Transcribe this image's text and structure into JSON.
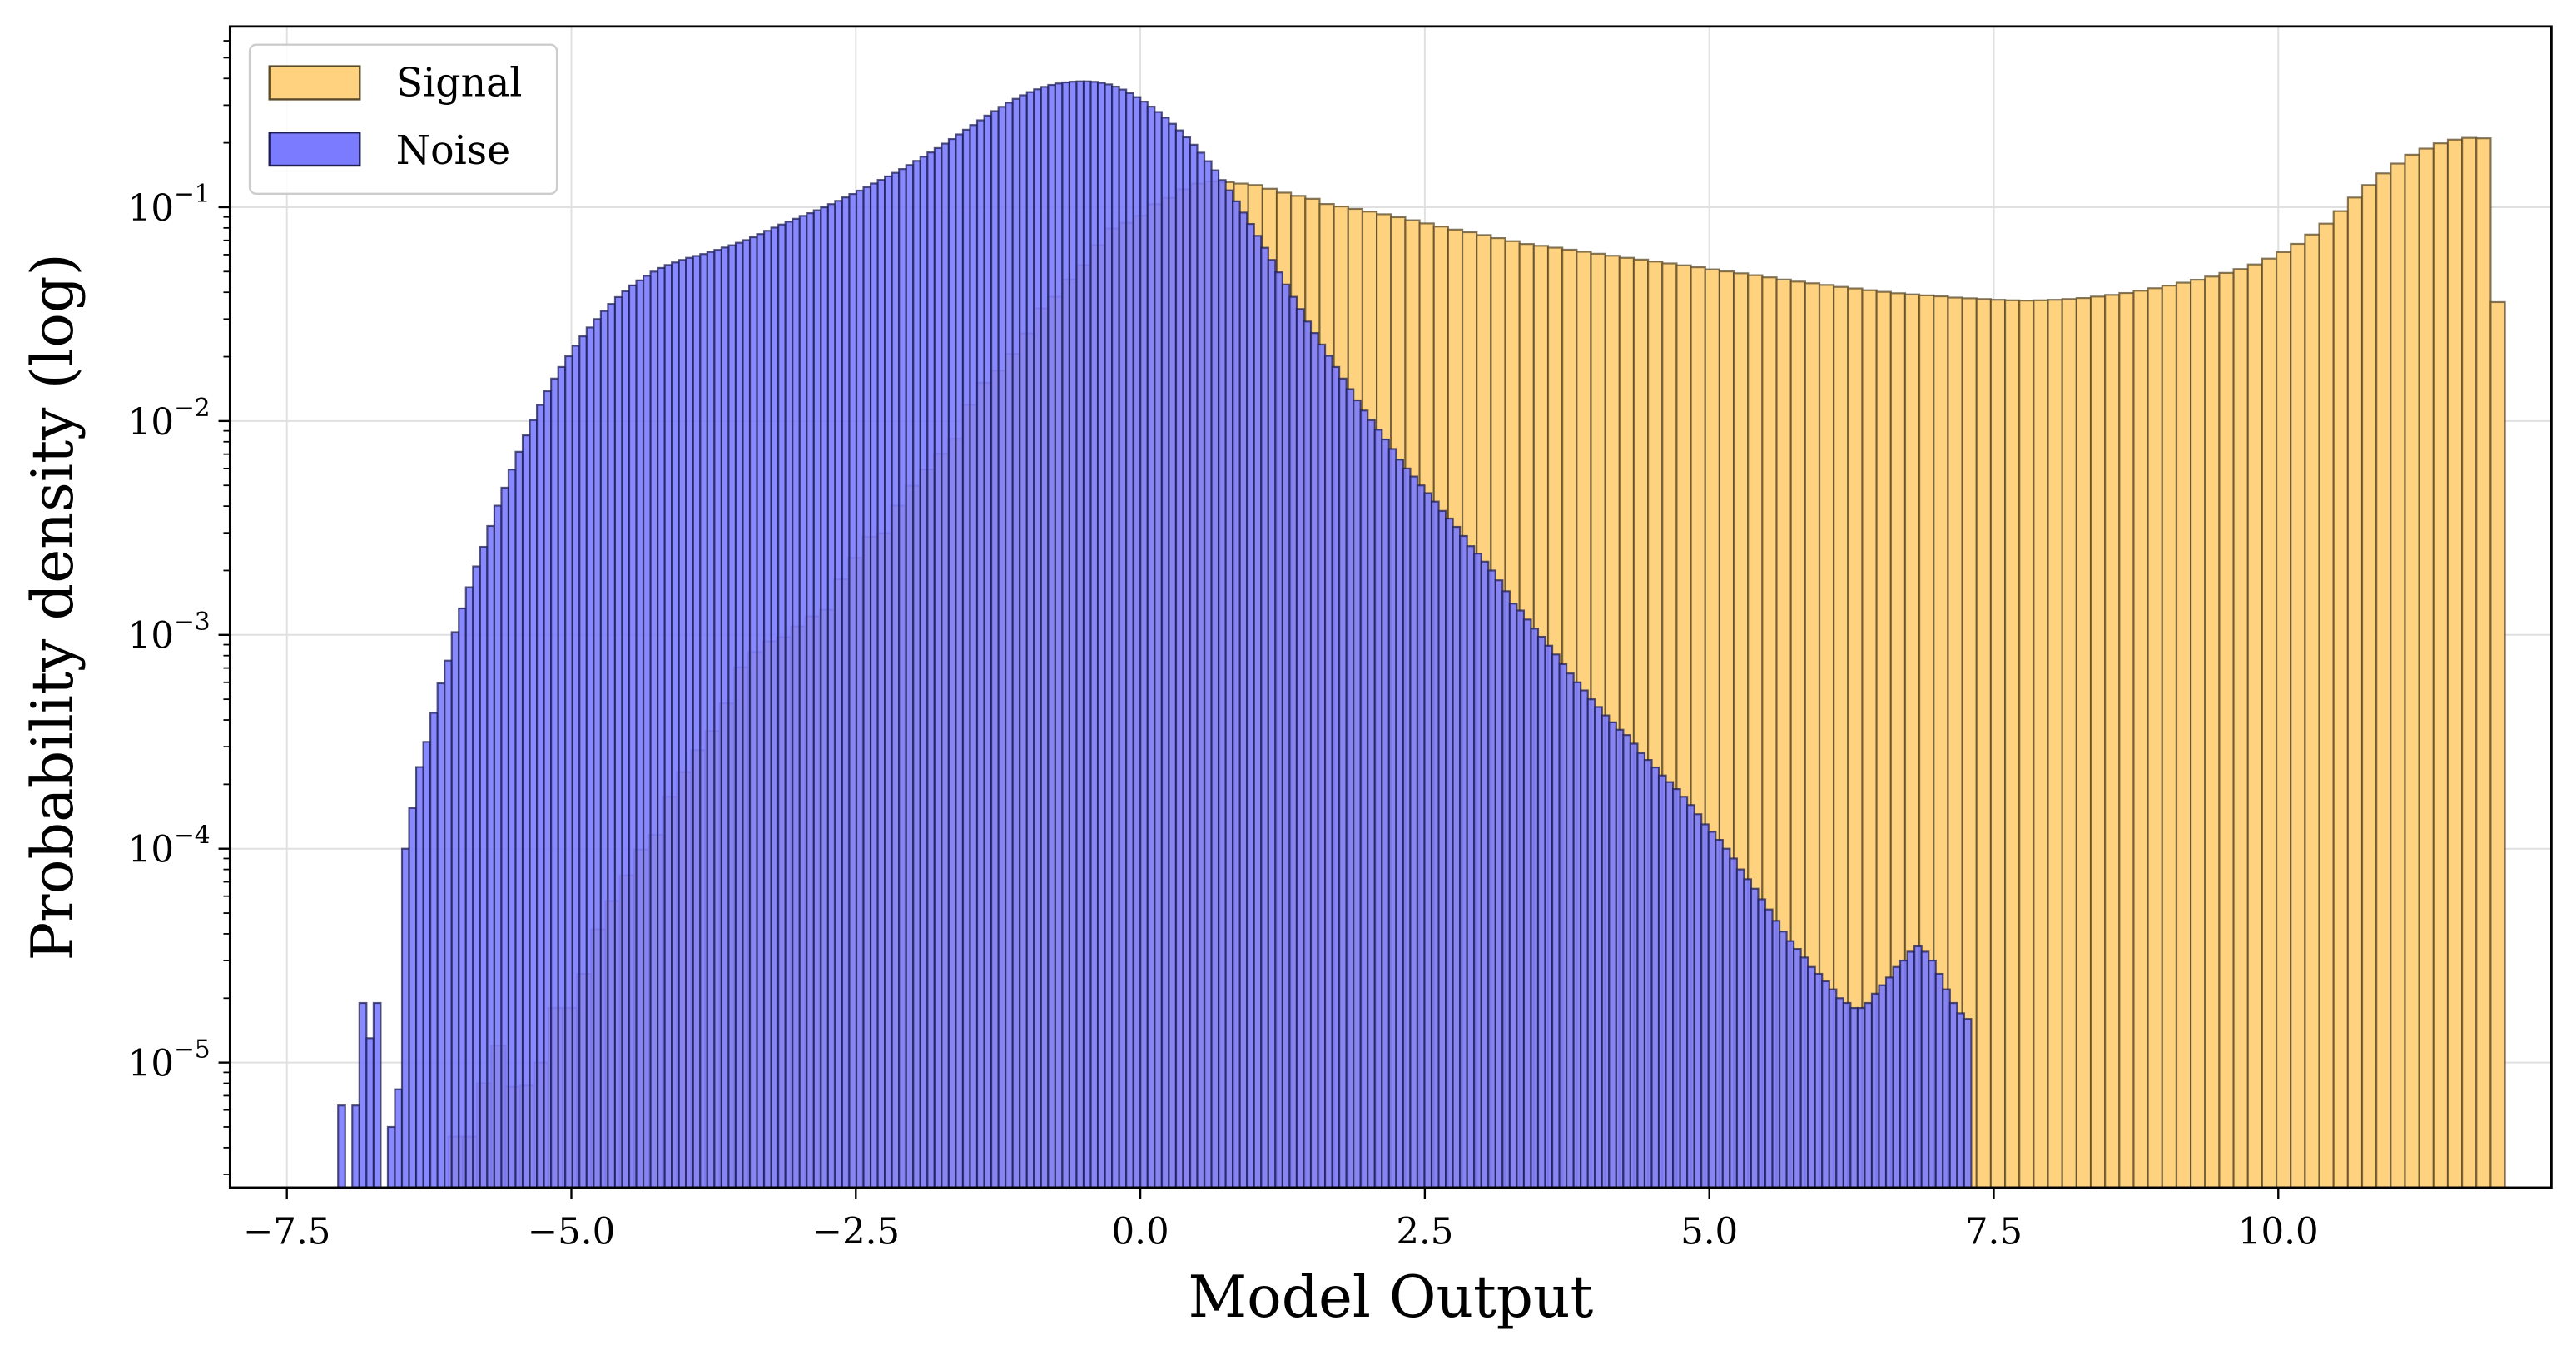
{
  "chart_data": {
    "type": "bar",
    "xlabel": "Model Output",
    "ylabel": "Probability density (log)",
    "xlim": [
      -8.0,
      12.4
    ],
    "ylim": [
      2.6e-06,
      0.7
    ],
    "yscale": "log",
    "grid": true,
    "legend_position": "top-left",
    "x_ticks": [
      "−7.5",
      "−5.0",
      "−2.5",
      "0.0",
      "2.5",
      "5.0",
      "7.5",
      "10.0"
    ],
    "x_tick_values": [
      -7.5,
      -5.0,
      -2.5,
      0.0,
      2.5,
      5.0,
      7.5,
      10.0
    ],
    "y_ticks": [
      {
        "value": 1e-05,
        "base": "10",
        "exp": "−5"
      },
      {
        "value": 0.0001,
        "base": "10",
        "exp": "−4"
      },
      {
        "value": 0.001,
        "base": "10",
        "exp": "−3"
      },
      {
        "value": 0.01,
        "base": "10",
        "exp": "−2"
      },
      {
        "value": 0.1,
        "base": "10",
        "exp": "−1"
      }
    ],
    "series": [
      {
        "name": "Signal",
        "color": "#ffd27f",
        "edge_color": "#5a4a2a",
        "bin_start": -6.08,
        "bin_width": 0.1255,
        "values": [
          4.5e-06,
          4.5e-06,
          8e-06,
          1.2e-05,
          7.7e-06,
          7.8e-06,
          1e-05,
          1.8e-05,
          1.8e-05,
          2.6e-05,
          4.2e-05,
          5.7e-05,
          7.5e-05,
          9.9e-05,
          0.000116,
          0.000175,
          0.000228,
          0.000289,
          0.000355,
          0.000478,
          0.000705,
          0.000832,
          0.000933,
          0.000975,
          0.001095,
          0.00122,
          0.00131,
          0.00182,
          0.00229,
          0.00287,
          0.00299,
          0.00402,
          0.00498,
          0.00594,
          0.00703,
          0.00826,
          0.0119,
          0.0151,
          0.0172,
          0.0206,
          0.0257,
          0.0336,
          0.0381,
          0.0459,
          0.0536,
          0.0664,
          0.0795,
          0.0845,
          0.0912,
          0.1033,
          0.1105,
          0.1213,
          0.129,
          0.132,
          0.131,
          0.129,
          0.127,
          0.122,
          0.117,
          0.113,
          0.1095,
          0.1035,
          0.1008,
          0.0982,
          0.0954,
          0.0927,
          0.0898,
          0.0869,
          0.084,
          0.0812,
          0.0786,
          0.0764,
          0.0741,
          0.0717,
          0.0694,
          0.0673,
          0.066,
          0.0647,
          0.0633,
          0.0619,
          0.0606,
          0.0593,
          0.058,
          0.0569,
          0.0557,
          0.0546,
          0.0535,
          0.0524,
          0.0512,
          0.0501,
          0.0491,
          0.0481,
          0.047,
          0.0459,
          0.0449,
          0.0441,
          0.0433,
          0.0424,
          0.0417,
          0.0409,
          0.0402,
          0.0396,
          0.0391,
          0.0387,
          0.0383,
          0.0378,
          0.0375,
          0.0372,
          0.0369,
          0.0367,
          0.0366,
          0.0367,
          0.0369,
          0.0372,
          0.0376,
          0.0382,
          0.0389,
          0.0397,
          0.0407,
          0.0418,
          0.043,
          0.0444,
          0.0458,
          0.0474,
          0.0493,
          0.0514,
          0.054,
          0.0575,
          0.0617,
          0.0674,
          0.0745,
          0.0838,
          0.0959,
          0.111,
          0.127,
          0.144,
          0.16,
          0.176,
          0.188,
          0.199,
          0.207,
          0.211,
          0.21,
          0.036
        ]
      },
      {
        "name": "Noise",
        "color": "#7b7bff",
        "edge_color": "#1e1e50",
        "bin_start": -7.05,
        "bin_width": 0.0624,
        "values": [
          6.3e-06,
          0,
          6.3e-06,
          1.9e-05,
          1.3e-05,
          1.9e-05,
          0,
          5e-06,
          7.5e-06,
          0.0001,
          0.000155,
          0.000241,
          0.000316,
          0.000432,
          0.000594,
          0.000758,
          0.00103,
          0.00133,
          0.00167,
          0.00209,
          0.00258,
          0.00323,
          0.00402,
          0.00488,
          0.00593,
          0.00718,
          0.00857,
          0.0101,
          0.0119,
          0.0138,
          0.0158,
          0.0179,
          0.0201,
          0.0225,
          0.0249,
          0.0274,
          0.03,
          0.0327,
          0.0353,
          0.038,
          0.0405,
          0.0431,
          0.0455,
          0.0478,
          0.05,
          0.052,
          0.0537,
          0.0552,
          0.0567,
          0.058,
          0.0592,
          0.0604,
          0.0618,
          0.0632,
          0.0648,
          0.0664,
          0.0682,
          0.0702,
          0.0724,
          0.0749,
          0.0776,
          0.0803,
          0.083,
          0.0856,
          0.0883,
          0.0911,
          0.0938,
          0.0968,
          0.0999,
          0.1034,
          0.1071,
          0.1112,
          0.1153,
          0.1196,
          0.1242,
          0.1291,
          0.1342,
          0.1394,
          0.1448,
          0.1508,
          0.1575,
          0.1647,
          0.1723,
          0.1804,
          0.1891,
          0.1984,
          0.2083,
          0.219,
          0.2303,
          0.2423,
          0.255,
          0.2682,
          0.2815,
          0.2948,
          0.3082,
          0.3213,
          0.3338,
          0.3455,
          0.3561,
          0.3654,
          0.3732,
          0.3792,
          0.3836,
          0.3864,
          0.3878,
          0.3877,
          0.3858,
          0.3818,
          0.3753,
          0.3664,
          0.355,
          0.3418,
          0.3273,
          0.3117,
          0.2954,
          0.2789,
          0.2623,
          0.2456,
          0.2288,
          0.2123,
          0.196,
          0.1799,
          0.1642,
          0.1488,
          0.134,
          0.1199,
          0.1066,
          0.0944,
          0.0835,
          0.0735,
          0.0646,
          0.0567,
          0.0496,
          0.0435,
          0.0381,
          0.0334,
          0.0292,
          0.0258,
          0.0228,
          0.0202,
          0.0179,
          0.0158,
          0.0141,
          0.0125,
          0.0112,
          0.0101,
          0.0091,
          0.0082,
          0.0074,
          0.0066,
          0.006,
          0.0055,
          0.005,
          0.0046,
          0.0042,
          0.0038,
          0.0035,
          0.0032,
          0.0029,
          0.0026,
          0.0024,
          0.0022,
          0.002,
          0.0018,
          0.0016,
          0.0014,
          0.0013,
          0.00118,
          0.00107,
          0.00098,
          0.00089,
          0.00081,
          0.00073,
          0.00066,
          0.0006,
          0.00055,
          0.0005,
          0.00046,
          0.00042,
          0.00039,
          0.00036,
          0.00034,
          0.00031,
          0.00028,
          0.00026,
          0.00024,
          0.00022,
          0.000205,
          0.00019,
          0.000175,
          0.00016,
          0.000145,
          0.00013,
          0.00012,
          0.00011,
          0.0001,
          9e-05,
          8e-05,
          7.2e-05,
          6.5e-05,
          5.8e-05,
          5.2e-05,
          4.6e-05,
          4.1e-05,
          3.7e-05,
          3.4e-05,
          3.1e-05,
          2.8e-05,
          2.6e-05,
          2.4e-05,
          2.2e-05,
          2e-05,
          1.9e-05,
          1.8e-05,
          1.8e-05,
          1.9e-05,
          2.1e-05,
          2.3e-05,
          2.5e-05,
          2.8e-05,
          3e-05,
          3.3e-05,
          3.5e-05,
          3.3e-05,
          3e-05,
          2.6e-05,
          2.2e-05,
          1.9e-05,
          1.7e-05,
          1.6e-05
        ]
      }
    ]
  }
}
